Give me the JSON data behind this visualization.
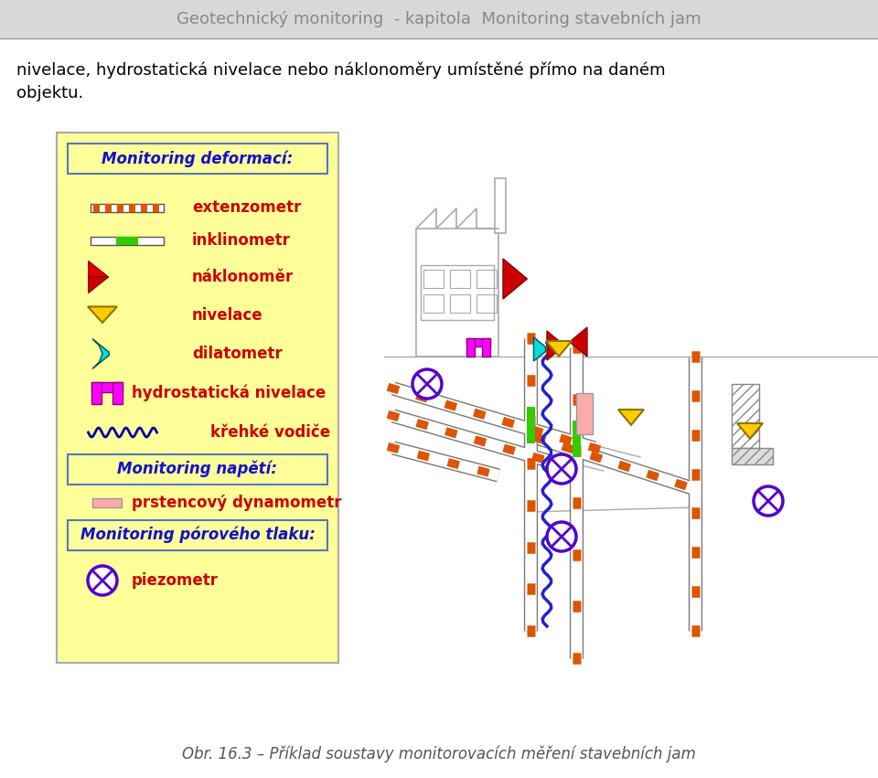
{
  "header_text": "Geotechnický monitoring  - kapitola  Monitoring stavebních jam",
  "header_bg": "#d8d8d8",
  "header_color": "#888888",
  "body_bg": "#ffffff",
  "intro_line1": "nivelace, hydrostatická nivelace nebo náklonoměry umístěné přímo na daném",
  "intro_line2": "objektu.",
  "intro_color": "#000000",
  "legend_bg": "#ffff99",
  "legend_border": "#aaaaaa",
  "legend_title1": "Monitoring deformací:",
  "legend_title2": "Monitoring napětí:",
  "legend_title3": "Monitoring pórového tlaku:",
  "legend_title_color": "#1111cc",
  "legend_label_color": "#cc0000",
  "caption": "Obr. 16.3 – Příklad soustavy monitorovacích měření stavebních jam",
  "caption_color": "#555555"
}
